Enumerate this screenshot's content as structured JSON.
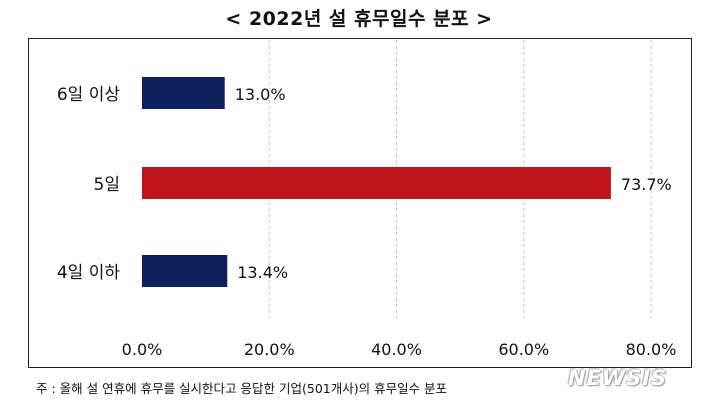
{
  "title": "< 2022년 설 휴무일수 분포 >",
  "note": "주 : 올해 설 연휴에 휴무를 실시한다고 응답한 기업(501개사)의 휴무일수 분포",
  "watermark": "NEWSIS",
  "chart_data": {
    "type": "bar",
    "orientation": "horizontal",
    "categories": [
      "6일 이상",
      "5일",
      "4일 이하"
    ],
    "values": [
      13.0,
      73.7,
      13.4
    ],
    "value_labels": [
      "13.0%",
      "73.7%",
      "13.4%"
    ],
    "colors": [
      "#0d1f5c",
      "#c0141b",
      "#0d1f5c"
    ],
    "title": "< 2022년 설 휴무일수 분포 >",
    "xlabel": "",
    "ylabel": "",
    "xlim": [
      0,
      80
    ],
    "x_ticks": [
      0,
      20,
      40,
      60,
      80
    ],
    "x_tick_labels": [
      "0.0%",
      "20.0%",
      "40.0%",
      "60.0%",
      "80.0%"
    ],
    "grid": "vertical dashed",
    "legend": "none"
  }
}
